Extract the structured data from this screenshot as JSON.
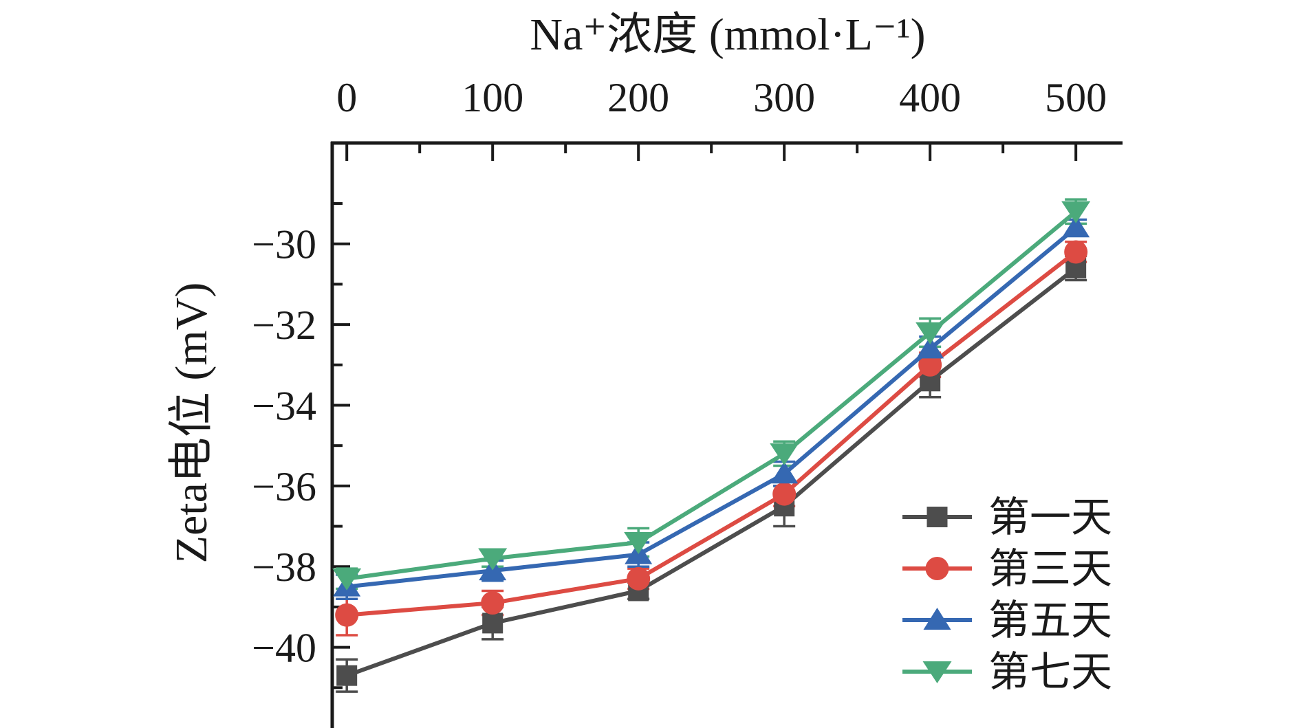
{
  "chart_data": {
    "type": "line",
    "title": "",
    "xlabel": "Na⁺浓度 (mmol·L⁻¹)",
    "ylabel": "Zeta电位 (mV)",
    "xlabel_position": "top",
    "x": [
      0,
      100,
      200,
      300,
      400,
      500
    ],
    "x_ticks_major": [
      0,
      100,
      200,
      300,
      400,
      500
    ],
    "x_ticks_minor": [
      50,
      150,
      250,
      350,
      450
    ],
    "y_ticks_major": [
      -30,
      -32,
      -34,
      -36,
      -38,
      -40
    ],
    "y_ticks_minor": [
      -29,
      -31,
      -33,
      -35,
      -37,
      -39,
      -41
    ],
    "xlim": [
      -10,
      532
    ],
    "ylim": [
      -42.0,
      -27.5
    ],
    "grid": false,
    "legend_position": "inside-bottom-right",
    "axis_color": "#1a1a1a",
    "series": [
      {
        "name": "第一天",
        "color": "#4D4D4D",
        "marker": "square",
        "values": [
          -40.7,
          -39.4,
          -38.6,
          -36.5,
          -33.4,
          -30.6
        ],
        "errors": [
          0.4,
          0.4,
          0.2,
          0.5,
          0.4,
          0.3
        ]
      },
      {
        "name": "第三天",
        "color": "#DD4B43",
        "marker": "circle",
        "values": [
          -39.2,
          -38.9,
          -38.3,
          -36.2,
          -33.0,
          -30.2
        ],
        "errors": [
          0.5,
          0.3,
          0.25,
          0.3,
          0.3,
          0.25
        ]
      },
      {
        "name": "第五天",
        "color": "#3568B2",
        "marker": "triangle-up",
        "values": [
          -38.5,
          -38.1,
          -37.7,
          -35.7,
          -32.6,
          -29.6
        ],
        "errors": [
          0.3,
          0.25,
          0.3,
          0.3,
          0.3,
          0.2
        ]
      },
      {
        "name": "第七天",
        "color": "#4BAA7B",
        "marker": "triangle-down",
        "values": [
          -38.3,
          -37.8,
          -37.4,
          -35.2,
          -32.2,
          -29.2
        ],
        "errors": [
          0.25,
          0.2,
          0.35,
          0.3,
          0.35,
          0.3
        ]
      }
    ]
  }
}
